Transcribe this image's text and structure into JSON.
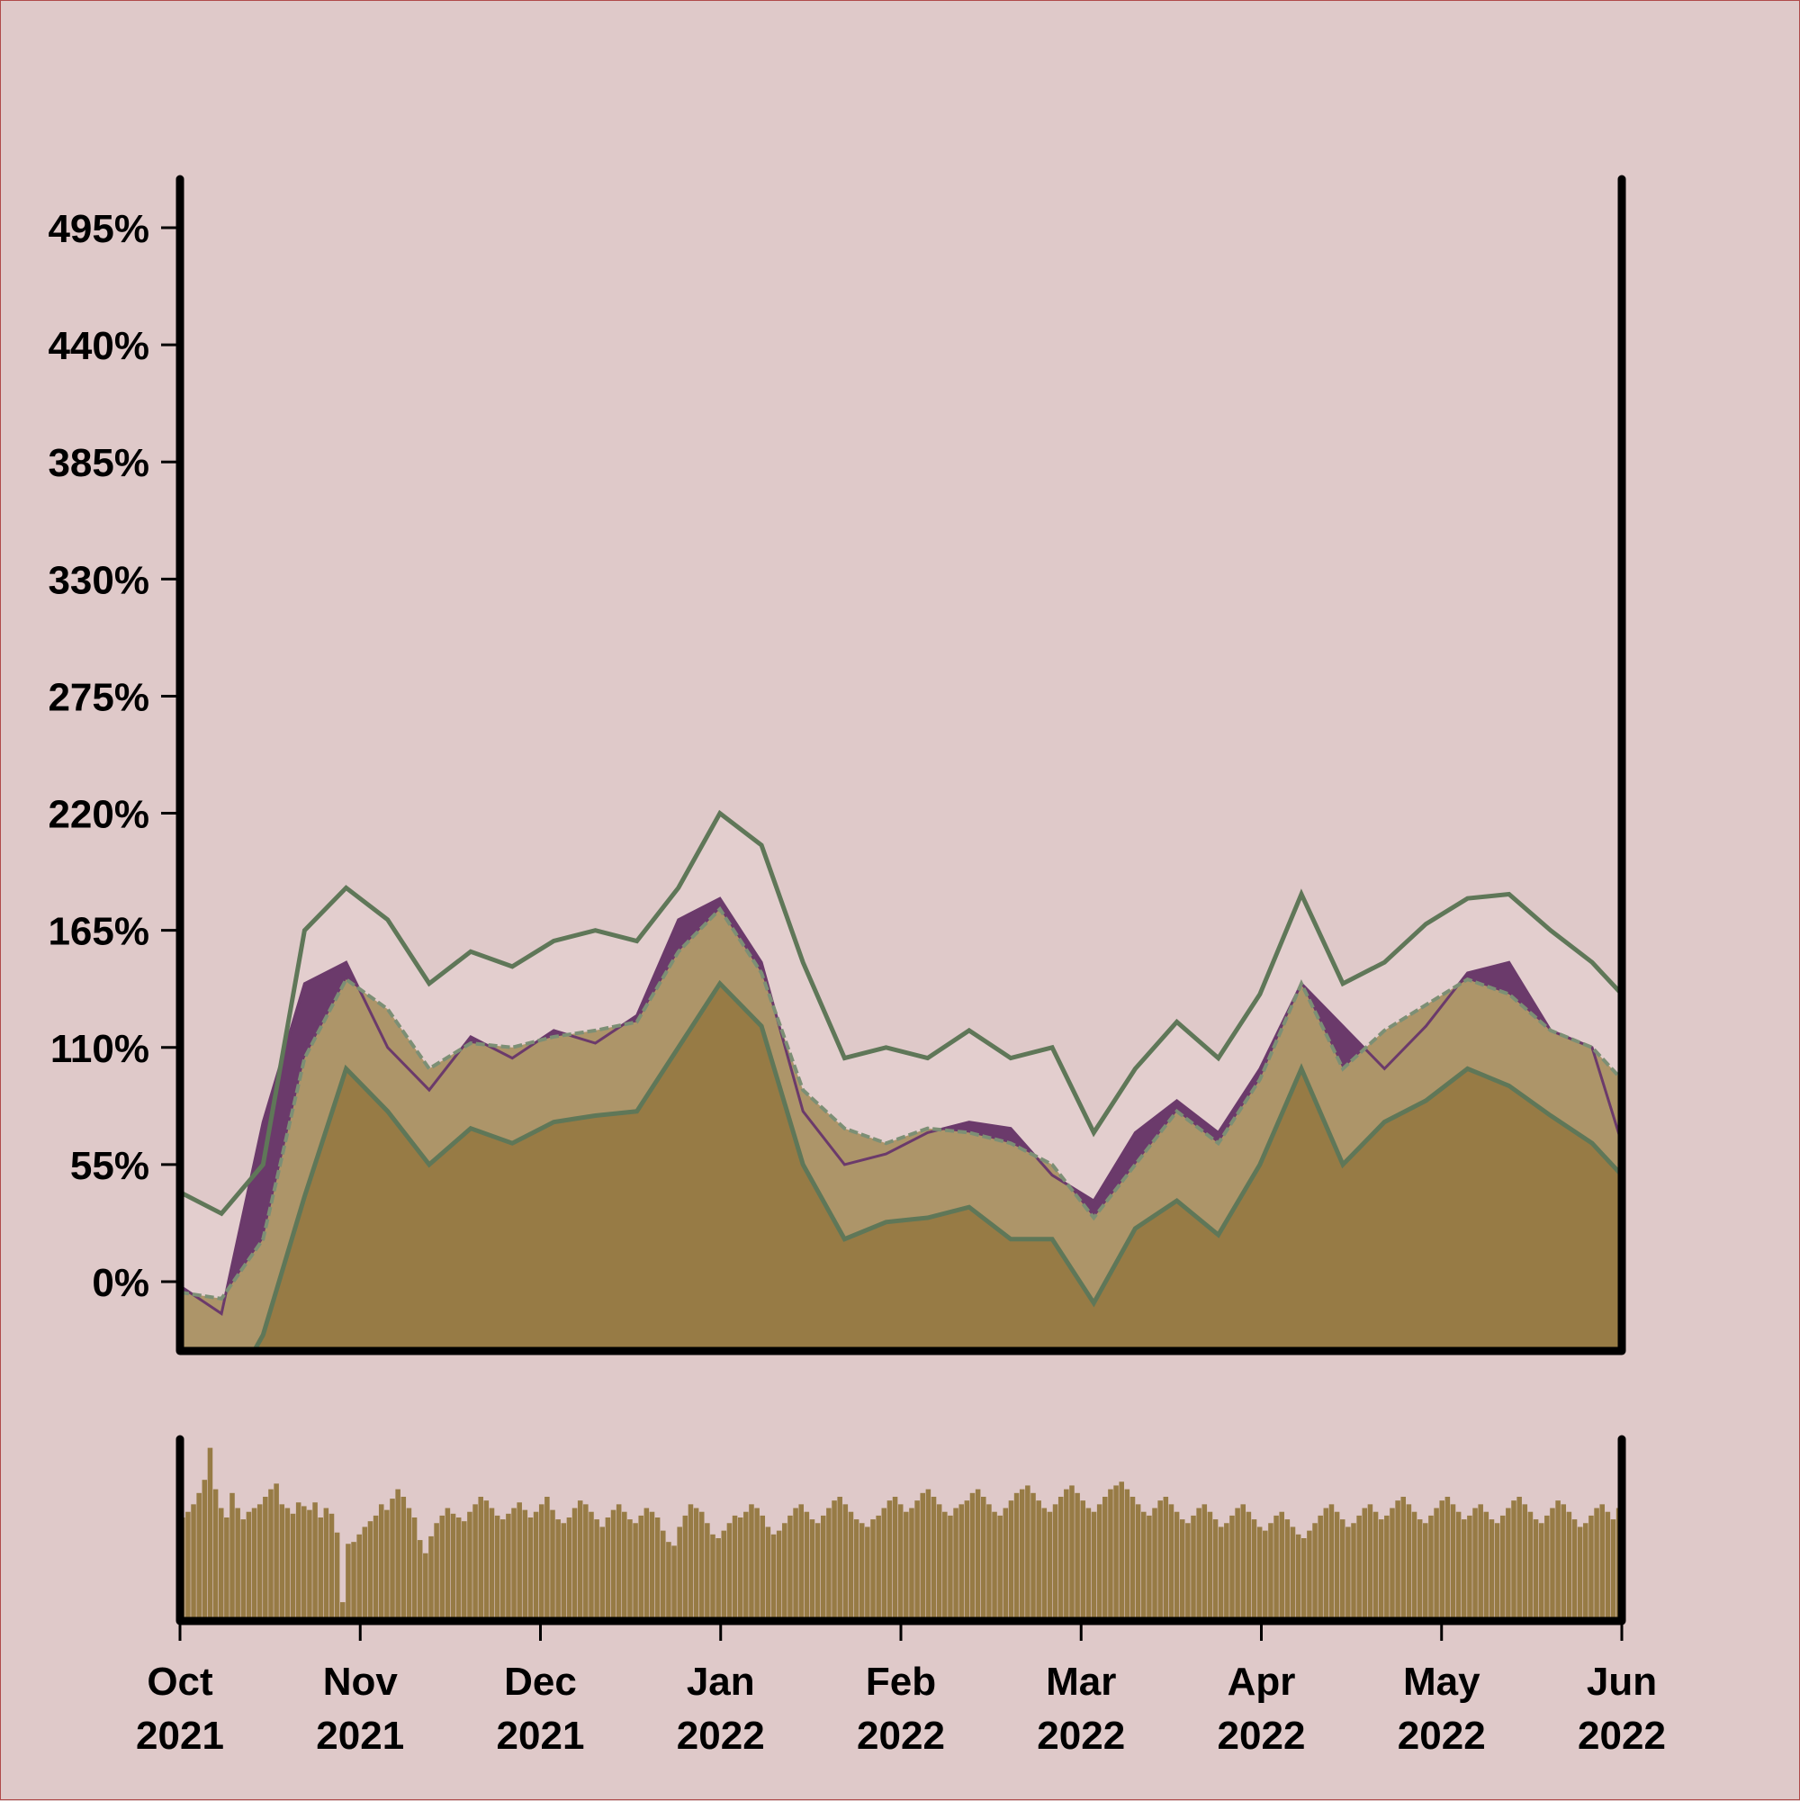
{
  "chart_data": [
    {
      "type": "area",
      "panel": "price",
      "x_start": "2021-10-01",
      "x_end": "2022-06-01",
      "ylim": [
        -110,
        520
      ],
      "yticks": [
        0,
        55,
        110,
        165,
        220,
        275,
        330,
        385,
        440,
        495
      ],
      "ytick_labels": [
        "0%",
        "55%",
        "110%",
        "165%",
        "220%",
        "275%",
        "330%",
        "385%",
        "440%",
        "495%"
      ],
      "title": "",
      "xlabel": "",
      "ylabel": "",
      "grid": false,
      "colors": {
        "background": "#dfc9c9",
        "price_line": "#6b3a6b",
        "price_fill": "#6b3a6b",
        "area_fill": "#977b45",
        "band_fill": "#ad9569",
        "envelope": "#5f7758",
        "middle_line": "#7c8f75",
        "axis": "#000000"
      },
      "series": [
        {
          "role": "price",
          "x": [
            "2021-10-01",
            "2021-10-08",
            "2021-10-15",
            "2021-10-22",
            "2021-10-29",
            "2021-11-05",
            "2021-11-12",
            "2021-11-19",
            "2021-11-26",
            "2021-12-03",
            "2021-12-10",
            "2021-12-17",
            "2021-12-24",
            "2021-12-31",
            "2022-01-07",
            "2022-01-14",
            "2022-01-21",
            "2022-01-28",
            "2022-02-04",
            "2022-02-11",
            "2022-02-18",
            "2022-02-25",
            "2022-03-04",
            "2022-03-11",
            "2022-03-18",
            "2022-03-25",
            "2022-04-01",
            "2022-04-08",
            "2022-04-15",
            "2022-04-22",
            "2022-04-29",
            "2022-05-06",
            "2022-05-13",
            "2022-05-20",
            "2022-05-27",
            "2022-06-01"
          ],
          "y": [
            -2,
            -15,
            75,
            140,
            150,
            110,
            90,
            115,
            105,
            118,
            112,
            125,
            170,
            180,
            150,
            80,
            55,
            60,
            70,
            75,
            72,
            50,
            38,
            70,
            85,
            70,
            100,
            140,
            120,
            100,
            120,
            145,
            150,
            118,
            110,
            65
          ]
        },
        {
          "role": "moving_average",
          "x": [
            "2021-10-01",
            "2021-10-08",
            "2021-10-15",
            "2021-10-22",
            "2021-10-29",
            "2021-11-05",
            "2021-11-12",
            "2021-11-19",
            "2021-11-26",
            "2021-12-03",
            "2021-12-10",
            "2021-12-17",
            "2021-12-24",
            "2021-12-31",
            "2022-01-07",
            "2022-01-14",
            "2022-01-21",
            "2022-01-28",
            "2022-02-04",
            "2022-02-11",
            "2022-02-18",
            "2022-02-25",
            "2022-03-04",
            "2022-03-11",
            "2022-03-18",
            "2022-03-25",
            "2022-04-01",
            "2022-04-08",
            "2022-04-15",
            "2022-04-22",
            "2022-04-29",
            "2022-05-06",
            "2022-05-13",
            "2022-05-20",
            "2022-05-27",
            "2022-06-01"
          ],
          "y": [
            -5,
            -8,
            20,
            105,
            142,
            128,
            100,
            112,
            110,
            115,
            118,
            122,
            155,
            175,
            145,
            90,
            72,
            65,
            72,
            70,
            65,
            55,
            30,
            55,
            80,
            65,
            95,
            140,
            100,
            118,
            130,
            142,
            135,
            118,
            110,
            95
          ]
        },
        {
          "role": "upper_band",
          "x": [
            "2021-10-01",
            "2021-10-08",
            "2021-10-15",
            "2021-10-22",
            "2021-10-29",
            "2021-11-05",
            "2021-11-12",
            "2021-11-19",
            "2021-11-26",
            "2021-12-03",
            "2021-12-10",
            "2021-12-17",
            "2021-12-24",
            "2021-12-31",
            "2022-01-07",
            "2022-01-14",
            "2022-01-21",
            "2022-01-28",
            "2022-02-04",
            "2022-02-11",
            "2022-02-18",
            "2022-02-25",
            "2022-03-04",
            "2022-03-11",
            "2022-03-18",
            "2022-03-25",
            "2022-04-01",
            "2022-04-08",
            "2022-04-15",
            "2022-04-22",
            "2022-04-29",
            "2022-05-06",
            "2022-05-13",
            "2022-05-20",
            "2022-05-27",
            "2022-06-01"
          ],
          "y": [
            42,
            32,
            55,
            165,
            185,
            170,
            140,
            155,
            148,
            160,
            165,
            160,
            185,
            220,
            205,
            150,
            105,
            110,
            105,
            118,
            105,
            110,
            70,
            100,
            122,
            105,
            135,
            182,
            140,
            150,
            168,
            180,
            182,
            165,
            150,
            135
          ]
        },
        {
          "role": "lower_band",
          "x": [
            "2021-10-01",
            "2021-10-08",
            "2021-10-15",
            "2021-10-22",
            "2021-10-29",
            "2021-11-05",
            "2021-11-12",
            "2021-11-19",
            "2021-11-26",
            "2021-12-03",
            "2021-12-10",
            "2021-12-17",
            "2021-12-24",
            "2021-12-31",
            "2022-01-07",
            "2022-01-14",
            "2022-01-21",
            "2022-01-28",
            "2022-02-04",
            "2022-02-11",
            "2022-02-18",
            "2022-02-25",
            "2022-03-04",
            "2022-03-11",
            "2022-03-18",
            "2022-03-25",
            "2022-04-01",
            "2022-04-08",
            "2022-04-15",
            "2022-04-22",
            "2022-04-29",
            "2022-05-06",
            "2022-05-13",
            "2022-05-20",
            "2022-05-27",
            "2022-06-01"
          ],
          "y": [
            -60,
            -60,
            -25,
            40,
            100,
            80,
            55,
            72,
            65,
            75,
            78,
            80,
            110,
            140,
            120,
            55,
            20,
            28,
            30,
            35,
            20,
            20,
            -10,
            25,
            38,
            22,
            55,
            100,
            55,
            75,
            85,
            100,
            92,
            78,
            65,
            50
          ]
        }
      ]
    },
    {
      "type": "bar",
      "panel": "volume",
      "x_start": "2021-10-01",
      "x_end": "2022-06-01",
      "values": [
        55,
        58,
        62,
        68,
        75,
        92,
        70,
        60,
        55,
        68,
        60,
        54,
        58,
        60,
        62,
        66,
        70,
        73,
        62,
        60,
        57,
        63,
        61,
        59,
        63,
        55,
        60,
        57,
        47,
        10,
        41,
        42,
        46,
        50,
        53,
        56,
        62,
        59,
        65,
        70,
        66,
        60,
        55,
        43,
        36,
        45,
        52,
        56,
        60,
        57,
        55,
        53,
        58,
        62,
        66,
        64,
        60,
        56,
        54,
        57,
        60,
        63,
        59,
        55,
        58,
        62,
        66,
        59,
        54,
        52,
        55,
        60,
        64,
        62,
        58,
        54,
        50,
        55,
        59,
        62,
        58,
        54,
        52,
        56,
        60,
        58,
        55,
        48,
        42,
        40,
        50,
        56,
        62,
        60,
        58,
        52,
        46,
        44,
        48,
        52,
        56,
        55,
        58,
        62,
        60,
        56,
        50,
        46,
        48,
        52,
        56,
        60,
        62,
        58,
        54,
        52,
        56,
        60,
        64,
        66,
        62,
        58,
        54,
        52,
        50,
        54,
        56,
        60,
        64,
        66,
        62,
        58,
        60,
        64,
        68,
        70,
        66,
        62,
        58,
        56,
        60,
        62,
        64,
        68,
        70,
        66,
        62,
        58,
        56,
        60,
        64,
        68,
        70,
        72,
        68,
        64,
        60,
        58,
        62,
        66,
        70,
        72,
        68,
        64,
        60,
        58,
        62,
        66,
        70,
        72,
        74,
        70,
        66,
        62,
        58,
        56,
        60,
        64,
        66,
        62,
        58,
        54,
        52,
        56,
        60,
        62,
        58,
        54,
        50,
        52,
        56,
        60,
        62,
        58,
        54,
        50,
        48,
        52,
        56,
        58,
        54,
        50,
        46,
        44,
        48,
        52,
        56,
        60,
        62,
        58,
        54,
        50,
        52,
        56,
        60,
        62,
        58,
        54,
        56,
        60,
        64,
        66,
        62,
        58,
        54,
        52,
        56,
        60,
        64,
        66,
        62,
        58,
        54,
        56,
        60,
        62,
        58,
        54,
        52,
        56,
        60,
        64,
        66,
        62,
        58,
        54,
        52,
        56,
        60,
        64,
        62,
        58,
        54,
        50,
        52,
        56,
        60,
        62,
        58,
        54,
        60
      ]
    }
  ],
  "x_axis": {
    "ticks": [
      {
        "month": "Oct",
        "year": "2021"
      },
      {
        "month": "Nov",
        "year": "2021"
      },
      {
        "month": "Dec",
        "year": "2021"
      },
      {
        "month": "Jan",
        "year": "2022"
      },
      {
        "month": "Feb",
        "year": "2022"
      },
      {
        "month": "Mar",
        "year": "2022"
      },
      {
        "month": "Apr",
        "year": "2022"
      },
      {
        "month": "May",
        "year": "2022"
      },
      {
        "month": "Jun",
        "year": "2022"
      }
    ]
  }
}
